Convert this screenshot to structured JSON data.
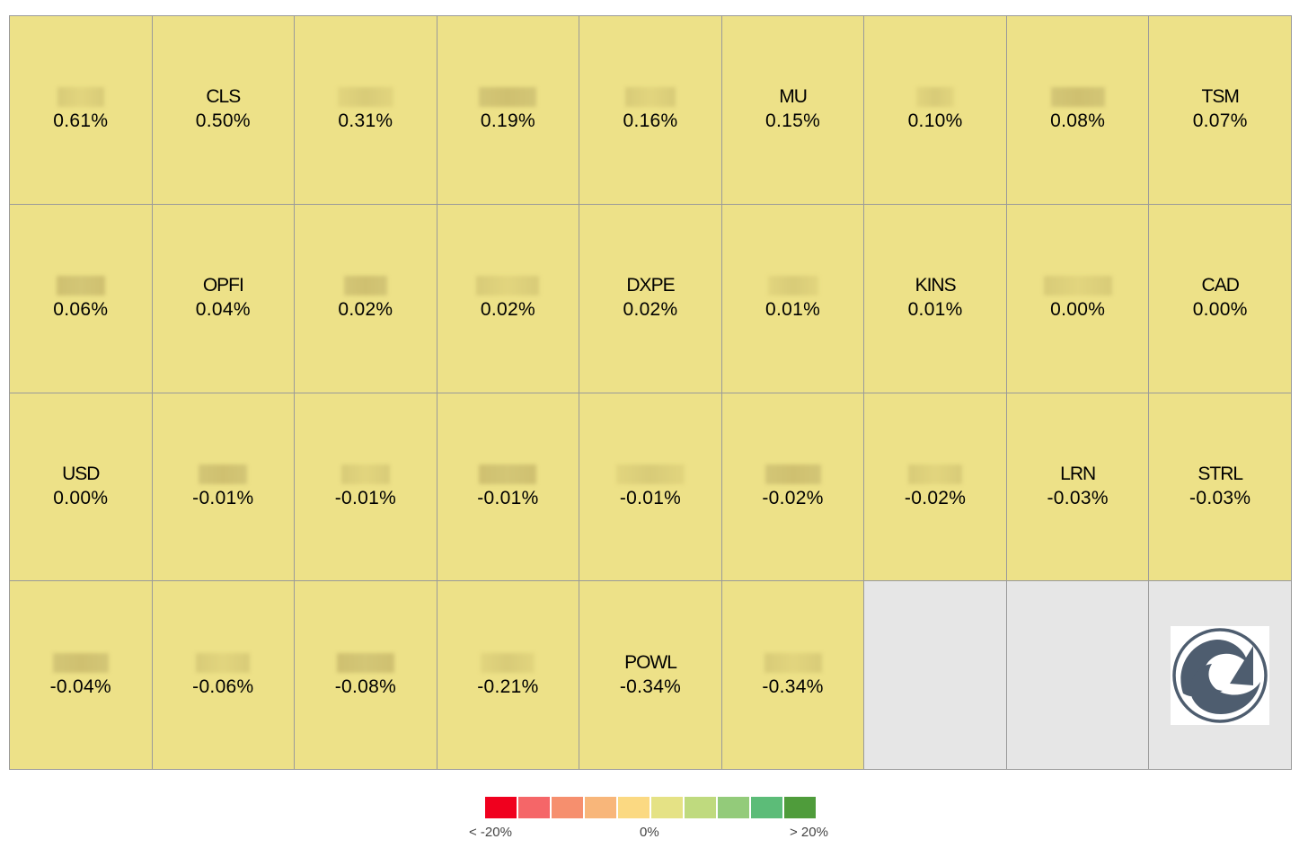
{
  "chart_data": {
    "type": "heatmap",
    "title": "",
    "cells": [
      {
        "ticker": "",
        "value": 0.61,
        "label": "0.61%",
        "redact_width": 52
      },
      {
        "ticker": "CLS",
        "value": 0.5,
        "label": "0.50%"
      },
      {
        "ticker": "",
        "value": 0.31,
        "label": "0.31%",
        "redact_width": 62
      },
      {
        "ticker": "",
        "value": 0.19,
        "label": "0.19%",
        "redact_width": 64
      },
      {
        "ticker": "",
        "value": 0.16,
        "label": "0.16%",
        "redact_width": 56
      },
      {
        "ticker": "MU",
        "value": 0.15,
        "label": "0.15%"
      },
      {
        "ticker": "",
        "value": 0.1,
        "label": "0.10%",
        "redact_width": 42
      },
      {
        "ticker": "",
        "value": 0.08,
        "label": "0.08%",
        "redact_width": 60
      },
      {
        "ticker": "TSM",
        "value": 0.07,
        "label": "0.07%"
      },
      {
        "ticker": "",
        "value": 0.06,
        "label": "0.06%",
        "redact_width": 54
      },
      {
        "ticker": "OPFI",
        "value": 0.04,
        "label": "0.04%"
      },
      {
        "ticker": "",
        "value": 0.02,
        "label": "0.02%",
        "redact_width": 48
      },
      {
        "ticker": "",
        "value": 0.02,
        "label": "0.02%",
        "redact_width": 70
      },
      {
        "ticker": "DXPE",
        "value": 0.02,
        "label": "0.02%"
      },
      {
        "ticker": "",
        "value": 0.01,
        "label": "0.01%",
        "redact_width": 56
      },
      {
        "ticker": "KINS",
        "value": 0.01,
        "label": "0.01%"
      },
      {
        "ticker": "",
        "value": 0.0,
        "label": "0.00%",
        "redact_width": 76
      },
      {
        "ticker": "CAD",
        "value": 0.0,
        "label": "0.00%"
      },
      {
        "ticker": "USD",
        "value": 0.0,
        "label": "0.00%"
      },
      {
        "ticker": "",
        "value": -0.01,
        "label": "-0.01%",
        "redact_width": 54
      },
      {
        "ticker": "",
        "value": -0.01,
        "label": "-0.01%",
        "redact_width": 54
      },
      {
        "ticker": "",
        "value": -0.01,
        "label": "-0.01%",
        "redact_width": 64
      },
      {
        "ticker": "",
        "value": -0.01,
        "label": "-0.01%",
        "redact_width": 76
      },
      {
        "ticker": "",
        "value": -0.02,
        "label": "-0.02%",
        "redact_width": 62
      },
      {
        "ticker": "",
        "value": -0.02,
        "label": "-0.02%",
        "redact_width": 60
      },
      {
        "ticker": "LRN",
        "value": -0.03,
        "label": "-0.03%"
      },
      {
        "ticker": "STRL",
        "value": -0.03,
        "label": "-0.03%"
      },
      {
        "ticker": "",
        "value": -0.04,
        "label": "-0.04%",
        "redact_width": 62
      },
      {
        "ticker": "",
        "value": -0.06,
        "label": "-0.06%",
        "redact_width": 60
      },
      {
        "ticker": "",
        "value": -0.08,
        "label": "-0.08%",
        "redact_width": 64
      },
      {
        "ticker": "",
        "value": -0.21,
        "label": "-0.21%",
        "redact_width": 60
      },
      {
        "ticker": "POWL",
        "value": -0.34,
        "label": "-0.34%"
      },
      {
        "ticker": "",
        "value": -0.34,
        "label": "-0.34%",
        "redact_width": 64
      }
    ],
    "empty_cells": 3,
    "cell_color": "#ede188",
    "empty_color": "#e6e6e6",
    "grid": true,
    "legend": {
      "placement": "bottom-center",
      "colors": [
        "#f0001e",
        "#f56668",
        "#f68f6e",
        "#f8b67a",
        "#fbd982",
        "#e5e285",
        "#bfda7e",
        "#93cb7a",
        "#5cbc78",
        "#4f9c3b"
      ],
      "labels": {
        "min": "< -20%",
        "mid": "0%",
        "max": "> 20%"
      }
    }
  },
  "logo": {
    "name": "shark-wave-logo-icon",
    "color": "#4e5d6f"
  }
}
